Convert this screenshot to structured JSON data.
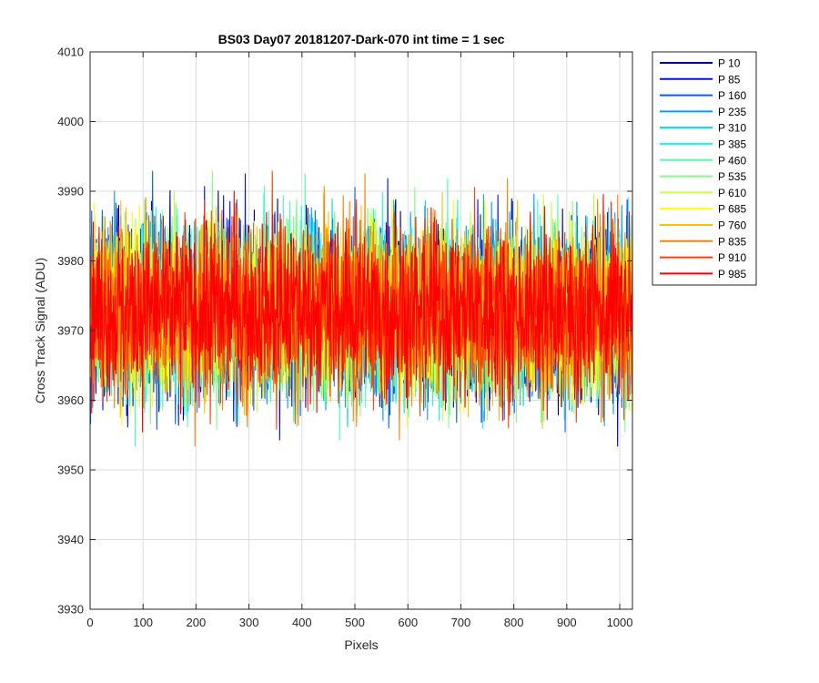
{
  "chart_data": {
    "type": "line",
    "title": "BS03 Day07 20181207-Dark-070 int time = 1 sec",
    "xlabel": "Pixels",
    "ylabel": "Cross Track Signal (ADU)",
    "xlim": [
      0,
      1024
    ],
    "ylim": [
      3930,
      4010
    ],
    "x_ticks": [
      0,
      100,
      200,
      300,
      400,
      500,
      600,
      700,
      800,
      900,
      1000
    ],
    "y_ticks": [
      3930,
      3940,
      3950,
      3960,
      3970,
      3980,
      3990,
      4000,
      4010
    ],
    "grid": true,
    "legend_position": "outside-right",
    "x_range_per_series": [
      1,
      1024
    ],
    "noise_model": "dark frame noise around 3973 ADU, roughly 3943–4002 envelope",
    "series": [
      {
        "name": "P 10",
        "color": "#00008f",
        "mean": 3973
      },
      {
        "name": "P 85",
        "color": "#0010ff",
        "mean": 3973
      },
      {
        "name": "P 160",
        "color": "#0060ff",
        "mean": 3973
      },
      {
        "name": "P 235",
        "color": "#00a0ff",
        "mean": 3973
      },
      {
        "name": "P 310",
        "color": "#00d0ff",
        "mean": 3973
      },
      {
        "name": "P 385",
        "color": "#10ffef",
        "mean": 3973
      },
      {
        "name": "P 460",
        "color": "#50ffaf",
        "mean": 3973
      },
      {
        "name": "P 535",
        "color": "#80ff80",
        "mean": 3973
      },
      {
        "name": "P 610",
        "color": "#c0ff40",
        "mean": 3973
      },
      {
        "name": "P 685",
        "color": "#ffff00",
        "mean": 3973
      },
      {
        "name": "P 760",
        "color": "#ffc000",
        "mean": 3973
      },
      {
        "name": "P 835",
        "color": "#ff8000",
        "mean": 3973
      },
      {
        "name": "P 910",
        "color": "#ff4000",
        "mean": 3973
      },
      {
        "name": "P 985",
        "color": "#ff0000",
        "mean": 3973
      }
    ]
  }
}
